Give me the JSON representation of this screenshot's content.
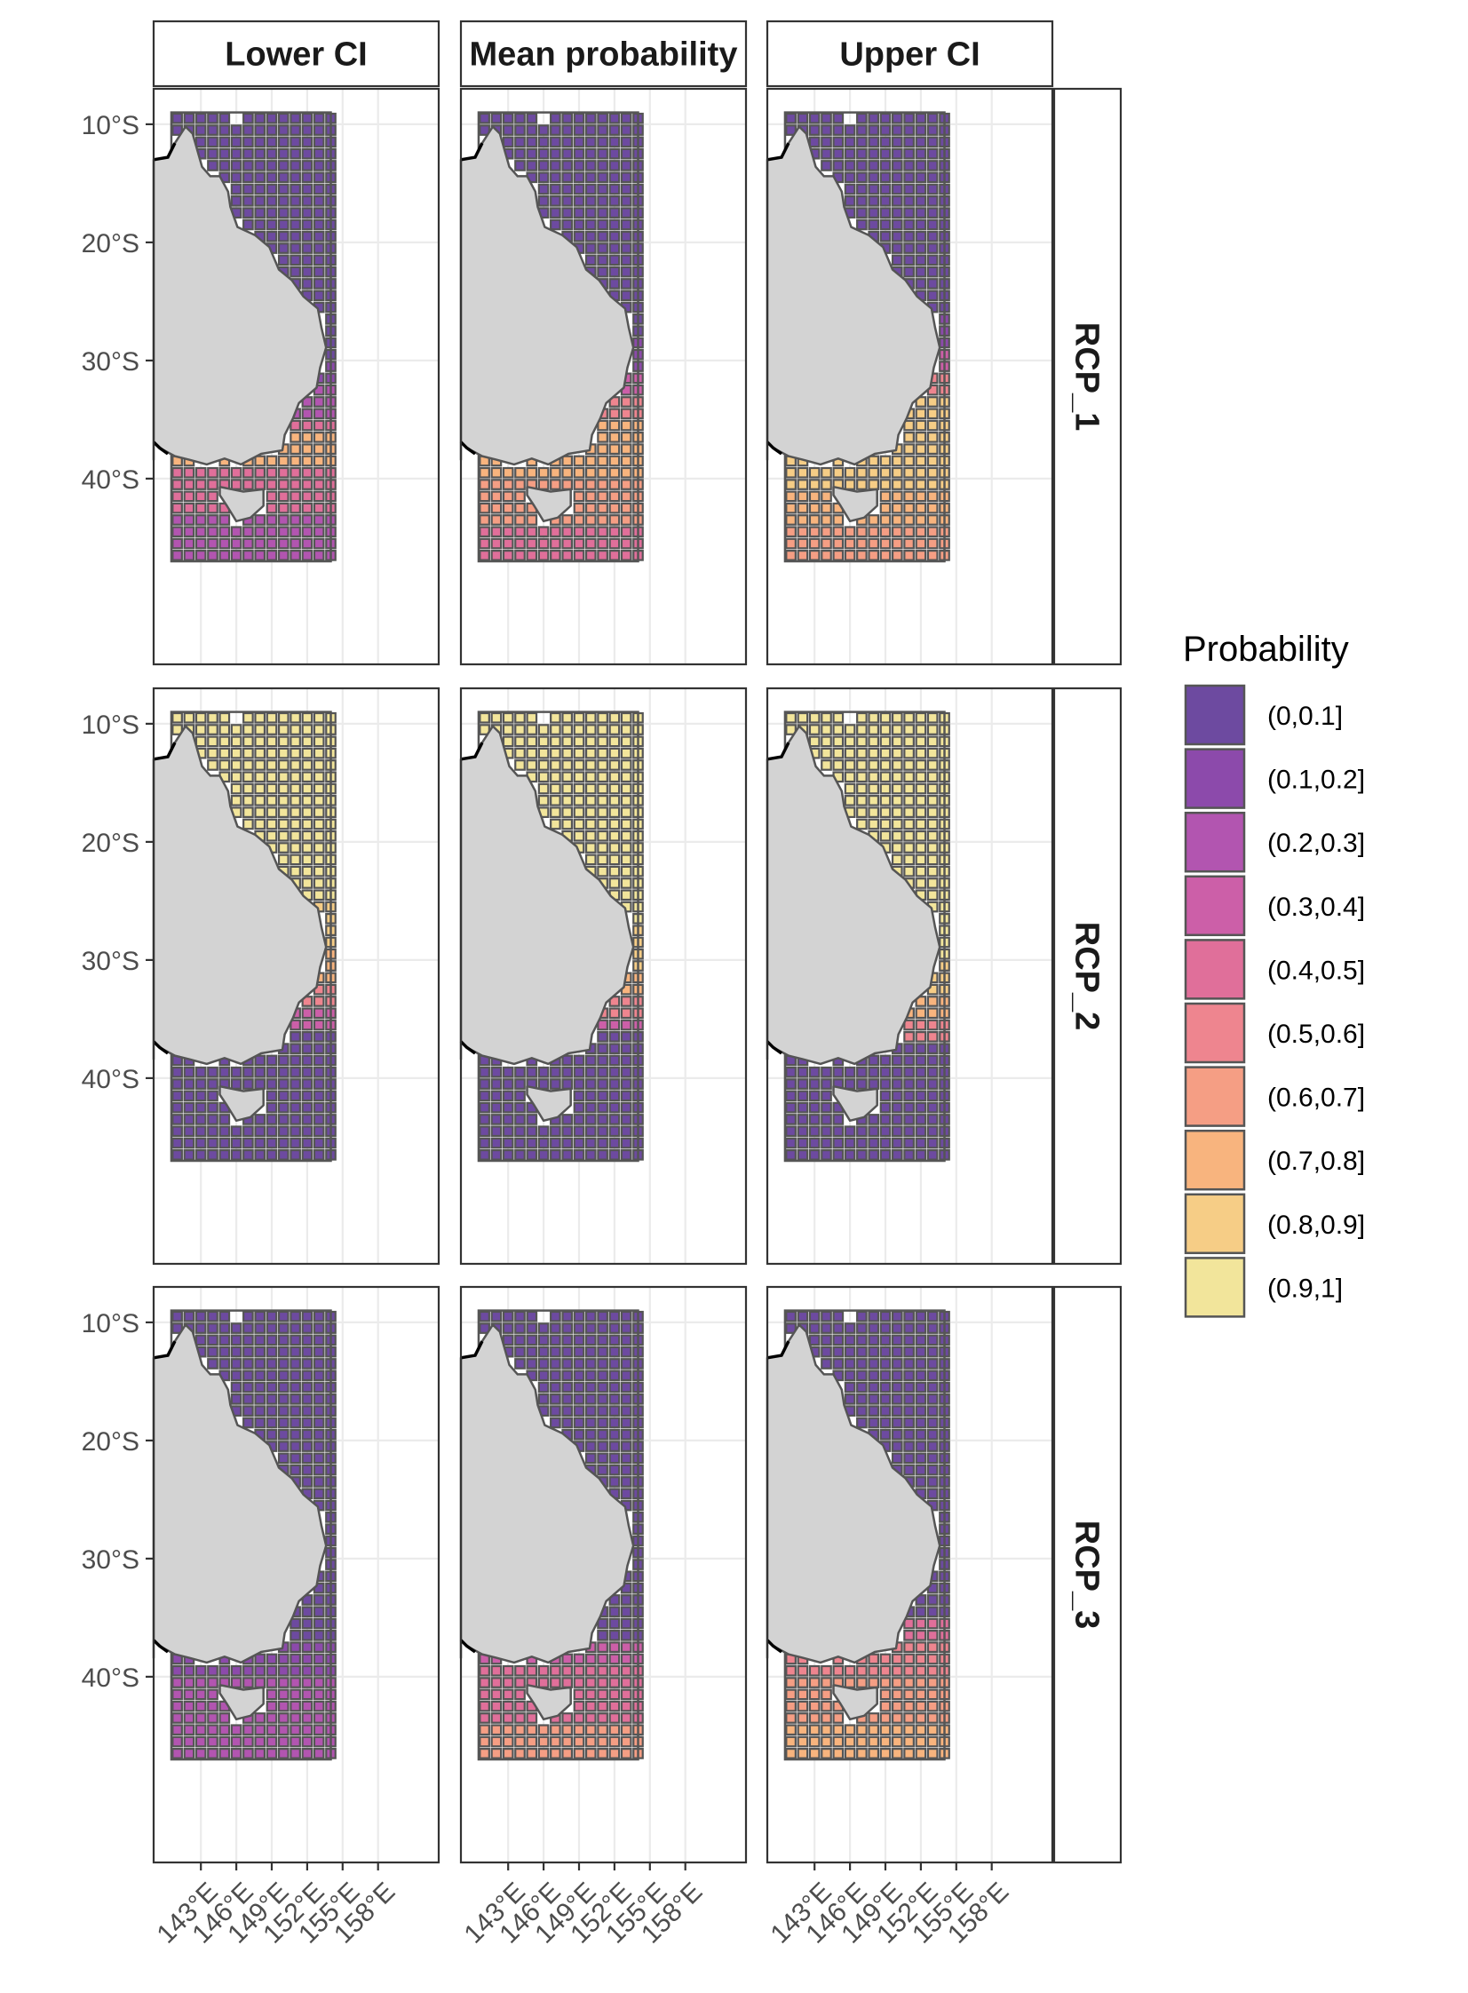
{
  "chart_data": {
    "type": "heatmap",
    "column_facets": [
      "Lower CI",
      "Mean probability",
      "Upper CI"
    ],
    "row_facets": [
      "RCP_1",
      "RCP_2",
      "RCP_3"
    ],
    "x_ticks": [
      "143°E",
      "146°E",
      "149°E",
      "152°E",
      "155°E",
      "158°E"
    ],
    "x_tick_values": [
      143,
      146,
      149,
      152,
      155,
      158
    ],
    "y_ticks": [
      "10°S",
      "20°S",
      "30°S",
      "40°S"
    ],
    "y_tick_values": [
      10,
      20,
      30,
      40
    ],
    "xlim": [
      139,
      163
    ],
    "ylim": [
      49.5,
      7
    ],
    "grid": true,
    "legend": {
      "title": "Probability",
      "position": "right",
      "categories": [
        "(0,0.1]",
        "(0.1,0.2]",
        "(0.2,0.3]",
        "(0.3,0.4]",
        "(0.4,0.5]",
        "(0.5,0.6]",
        "(0.6,0.7]",
        "(0.7,0.8]",
        "(0.8,0.9]",
        "(0.9,1]"
      ],
      "colors": [
        "#6d4aa0",
        "#8c4aab",
        "#b255b0",
        "#cc5fa8",
        "#e06f9a",
        "#ee858f",
        "#f59e84",
        "#f8b47e",
        "#f6cd86",
        "#f2e59b"
      ]
    },
    "land_color": "#d3d3d3",
    "cell_border_color": "#555555",
    "panels": [
      {
        "row": "RCP_1",
        "column": "Lower CI",
        "latitude_bands": [
          {
            "lat_from": 9,
            "lat_to": 30,
            "class": "(0,0.1]"
          },
          {
            "lat_from": 30,
            "lat_to": 32,
            "class": "(0.1,0.2]"
          },
          {
            "lat_from": 32,
            "lat_to": 35,
            "class": "(0.2,0.3]"
          },
          {
            "lat_from": 35,
            "lat_to": 36,
            "class": "(0.4,0.5]"
          },
          {
            "lat_from": 36,
            "lat_to": 39,
            "class": "(0.7,0.8]"
          },
          {
            "lat_from": 39,
            "lat_to": 43,
            "class": "(0.4,0.5]"
          },
          {
            "lat_from": 43,
            "lat_to": 47,
            "class": "(0.2,0.3]"
          }
        ]
      },
      {
        "row": "RCP_1",
        "column": "Mean probability",
        "latitude_bands": [
          {
            "lat_from": 9,
            "lat_to": 28,
            "class": "(0,0.1]"
          },
          {
            "lat_from": 28,
            "lat_to": 31,
            "class": "(0.1,0.2]"
          },
          {
            "lat_from": 31,
            "lat_to": 33,
            "class": "(0.3,0.4]"
          },
          {
            "lat_from": 33,
            "lat_to": 35,
            "class": "(0.5,0.6]"
          },
          {
            "lat_from": 35,
            "lat_to": 40,
            "class": "(0.7,0.8]"
          },
          {
            "lat_from": 40,
            "lat_to": 44,
            "class": "(0.6,0.7]"
          },
          {
            "lat_from": 44,
            "lat_to": 47,
            "class": "(0.4,0.5]"
          }
        ]
      },
      {
        "row": "RCP_1",
        "column": "Upper CI",
        "latitude_bands": [
          {
            "lat_from": 9,
            "lat_to": 26,
            "class": "(0,0.1]"
          },
          {
            "lat_from": 26,
            "lat_to": 29,
            "class": "(0.1,0.2]"
          },
          {
            "lat_from": 29,
            "lat_to": 31,
            "class": "(0.3,0.4]"
          },
          {
            "lat_from": 31,
            "lat_to": 33,
            "class": "(0.5,0.6]"
          },
          {
            "lat_from": 33,
            "lat_to": 41,
            "class": "(0.8,0.9]"
          },
          {
            "lat_from": 41,
            "lat_to": 44,
            "class": "(0.7,0.8]"
          },
          {
            "lat_from": 44,
            "lat_to": 47,
            "class": "(0.6,0.7]"
          }
        ]
      },
      {
        "row": "RCP_2",
        "column": "Lower CI",
        "latitude_bands": [
          {
            "lat_from": 9,
            "lat_to": 25,
            "class": "(0.9,1]"
          },
          {
            "lat_from": 25,
            "lat_to": 29,
            "class": "(0.8,0.9]"
          },
          {
            "lat_from": 29,
            "lat_to": 32,
            "class": "(0.7,0.8]"
          },
          {
            "lat_from": 32,
            "lat_to": 34,
            "class": "(0.5,0.6]"
          },
          {
            "lat_from": 34,
            "lat_to": 36,
            "class": "(0.3,0.4]"
          },
          {
            "lat_from": 36,
            "lat_to": 47,
            "class": "(0,0.1]"
          }
        ]
      },
      {
        "row": "RCP_2",
        "column": "Mean probability",
        "latitude_bands": [
          {
            "lat_from": 9,
            "lat_to": 27,
            "class": "(0.9,1]"
          },
          {
            "lat_from": 27,
            "lat_to": 31,
            "class": "(0.8,0.9]"
          },
          {
            "lat_from": 31,
            "lat_to": 33,
            "class": "(0.7,0.8]"
          },
          {
            "lat_from": 33,
            "lat_to": 35,
            "class": "(0.5,0.6]"
          },
          {
            "lat_from": 35,
            "lat_to": 36,
            "class": "(0.3,0.4]"
          },
          {
            "lat_from": 36,
            "lat_to": 47,
            "class": "(0,0.1]"
          }
        ]
      },
      {
        "row": "RCP_2",
        "column": "Upper CI",
        "latitude_bands": [
          {
            "lat_from": 9,
            "lat_to": 30,
            "class": "(0.9,1]"
          },
          {
            "lat_from": 30,
            "lat_to": 33,
            "class": "(0.8,0.9]"
          },
          {
            "lat_from": 33,
            "lat_to": 35,
            "class": "(0.7,0.8]"
          },
          {
            "lat_from": 35,
            "lat_to": 37,
            "class": "(0.5,0.6]"
          },
          {
            "lat_from": 37,
            "lat_to": 47,
            "class": "(0,0.1]"
          }
        ]
      },
      {
        "row": "RCP_3",
        "column": "Lower CI",
        "latitude_bands": [
          {
            "lat_from": 9,
            "lat_to": 37,
            "class": "(0,0.1]"
          },
          {
            "lat_from": 37,
            "lat_to": 40,
            "class": "(0.1,0.2]"
          },
          {
            "lat_from": 40,
            "lat_to": 47,
            "class": "(0.2,0.3]"
          }
        ]
      },
      {
        "row": "RCP_3",
        "column": "Mean probability",
        "latitude_bands": [
          {
            "lat_from": 9,
            "lat_to": 37,
            "class": "(0,0.1]"
          },
          {
            "lat_from": 37,
            "lat_to": 39,
            "class": "(0.3,0.4]"
          },
          {
            "lat_from": 39,
            "lat_to": 44,
            "class": "(0.4,0.5]"
          },
          {
            "lat_from": 44,
            "lat_to": 47,
            "class": "(0.6,0.7]"
          }
        ]
      },
      {
        "row": "RCP_3",
        "column": "Upper CI",
        "latitude_bands": [
          {
            "lat_from": 9,
            "lat_to": 35,
            "class": "(0,0.1]"
          },
          {
            "lat_from": 35,
            "lat_to": 37,
            "class": "(0.4,0.5]"
          },
          {
            "lat_from": 37,
            "lat_to": 40,
            "class": "(0.5,0.6]"
          },
          {
            "lat_from": 40,
            "lat_to": 44,
            "class": "(0.6,0.7]"
          },
          {
            "lat_from": 44,
            "lat_to": 47,
            "class": "(0.7,0.8]"
          }
        ]
      }
    ]
  }
}
